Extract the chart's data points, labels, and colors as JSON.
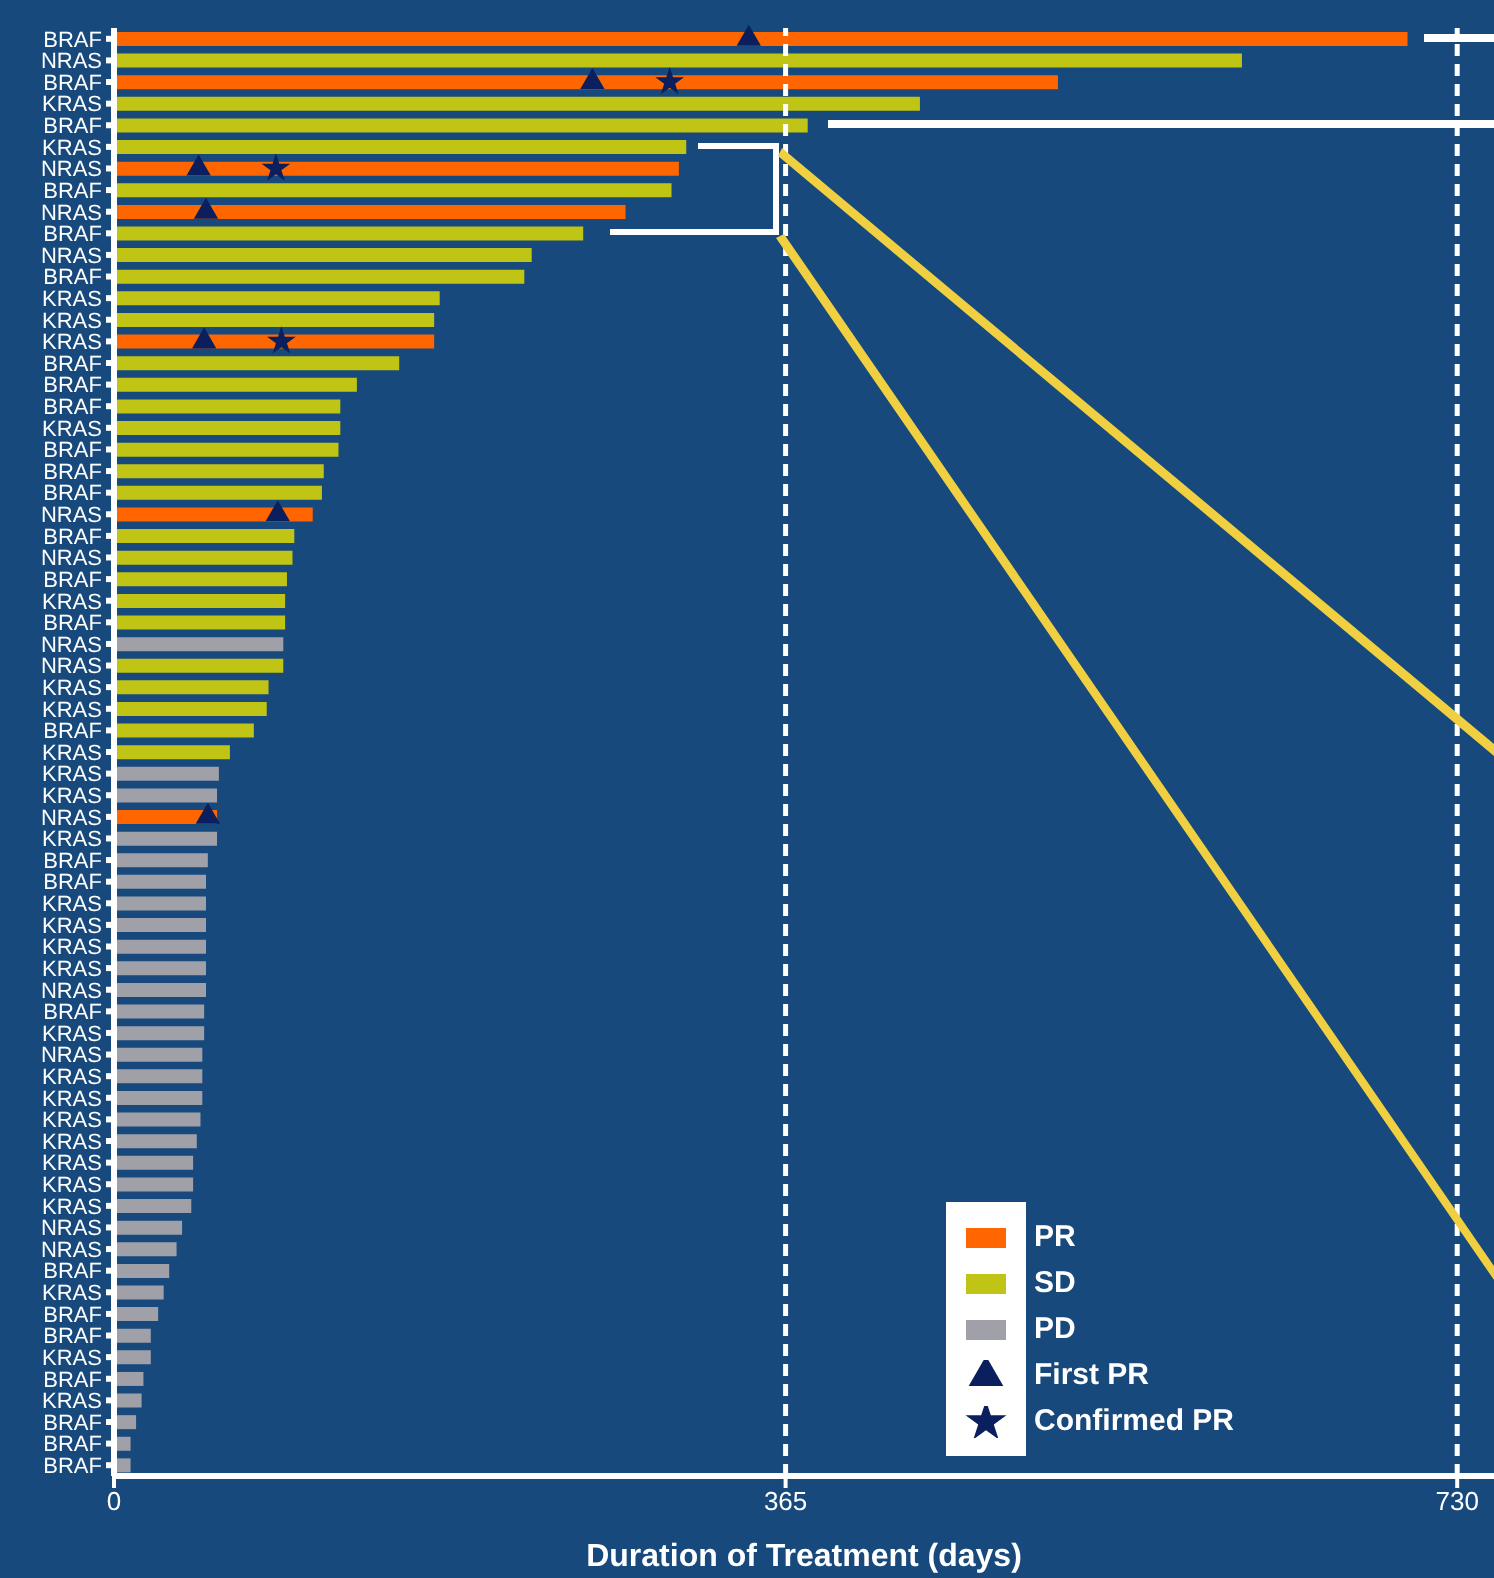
{
  "chart_data": {
    "type": "bar",
    "orientation": "horizontal",
    "stacked": true,
    "xlabel": "Duration of Treatment (days)",
    "categories": [
      "BRAF",
      "NRAS",
      "BRAF",
      "KRAS",
      "BRAF",
      "KRAS",
      "NRAS",
      "BRAF",
      "NRAS",
      "BRAF",
      "NRAS",
      "BRAF",
      "KRAS",
      "KRAS",
      "KRAS",
      "BRAF",
      "BRAF",
      "BRAF",
      "KRAS",
      "BRAF",
      "BRAF",
      "BRAF",
      "NRAS",
      "BRAF",
      "NRAS",
      "BRAF",
      "KRAS",
      "BRAF",
      "NRAS",
      "NRAS",
      "KRAS",
      "KRAS",
      "BRAF",
      "KRAS",
      "KRAS",
      "KRAS",
      "NRAS",
      "KRAS",
      "BRAF",
      "BRAF",
      "KRAS",
      "KRAS",
      "KRAS",
      "KRAS",
      "NRAS",
      "BRAF",
      "KRAS",
      "NRAS",
      "KRAS",
      "KRAS",
      "KRAS",
      "KRAS",
      "KRAS",
      "KRAS",
      "KRAS",
      "NRAS",
      "NRAS",
      "BRAF",
      "KRAS",
      "BRAF",
      "BRAF",
      "KRAS",
      "BRAF",
      "KRAS",
      "BRAF",
      "BRAF",
      "BRAF"
    ],
    "series": [
      {
        "name": "PR",
        "color": "#ff6600",
        "values": [
          703,
          null,
          513,
          null,
          null,
          null,
          307,
          null,
          278,
          null,
          null,
          null,
          null,
          null,
          174,
          null,
          null,
          null,
          null,
          null,
          null,
          null,
          108,
          null,
          null,
          null,
          null,
          null,
          null,
          null,
          null,
          null,
          null,
          null,
          null,
          null,
          56,
          null,
          null,
          null,
          null,
          null,
          null,
          null,
          null,
          null,
          null,
          null,
          null,
          null,
          null,
          null,
          null,
          null,
          null,
          null,
          null,
          null,
          null,
          null,
          null,
          null,
          null,
          null,
          null,
          null,
          null
        ]
      },
      {
        "name": "SD",
        "color": "#c0c415",
        "values": [
          null,
          613,
          null,
          438,
          377,
          311,
          null,
          303,
          null,
          255,
          227,
          223,
          177,
          174,
          null,
          155,
          132,
          123,
          123,
          122,
          114,
          113,
          null,
          98,
          97,
          94,
          93,
          93,
          null,
          92,
          84,
          83,
          76,
          63,
          null,
          null,
          null,
          null,
          null,
          null,
          null,
          null,
          null,
          null,
          null,
          null,
          null,
          null,
          null,
          null,
          null,
          null,
          null,
          null,
          null,
          null,
          null,
          null,
          null,
          null,
          null,
          null,
          null,
          null,
          null,
          null,
          null
        ]
      },
      {
        "name": "PD",
        "color": "#a0a0a8",
        "values": [
          null,
          null,
          null,
          null,
          null,
          null,
          null,
          null,
          null,
          null,
          null,
          null,
          null,
          null,
          null,
          null,
          null,
          null,
          null,
          null,
          null,
          null,
          null,
          null,
          null,
          null,
          null,
          null,
          92,
          null,
          null,
          null,
          null,
          null,
          57,
          56,
          null,
          56,
          51,
          50,
          50,
          50,
          50,
          50,
          50,
          49,
          49,
          48,
          48,
          48,
          47,
          45,
          43,
          43,
          42,
          37,
          34,
          30,
          27,
          24,
          20,
          20,
          16,
          15,
          12,
          9,
          9
        ]
      },
      {
        "name": "First PR",
        "type": "scatter",
        "marker": "triangle",
        "color": "#0b1f5e",
        "values": [
          345,
          null,
          260,
          null,
          null,
          null,
          46,
          null,
          50,
          null,
          null,
          null,
          null,
          null,
          49,
          null,
          null,
          null,
          null,
          null,
          null,
          null,
          89,
          null,
          null,
          null,
          null,
          null,
          null,
          null,
          null,
          null,
          null,
          null,
          null,
          null,
          51,
          null,
          null,
          null,
          null,
          null,
          null,
          null,
          null,
          null,
          null,
          null,
          null,
          null,
          null,
          null,
          null,
          null,
          null,
          null,
          null,
          null,
          null,
          null,
          null,
          null,
          null,
          null,
          null,
          null,
          null
        ]
      },
      {
        "name": "Confirmed PR",
        "type": "scatter",
        "marker": "star",
        "color": "#0b1f5e",
        "values": [
          null,
          null,
          302,
          null,
          null,
          null,
          88,
          null,
          null,
          null,
          null,
          null,
          null,
          null,
          91,
          null,
          null,
          null,
          null,
          null,
          null,
          null,
          null,
          null,
          null,
          null,
          null,
          null,
          null,
          null,
          null,
          null,
          null,
          null,
          null,
          null,
          null,
          null,
          null,
          null,
          null,
          null,
          null,
          null,
          null,
          null,
          null,
          null,
          null,
          null,
          null,
          null,
          null,
          null,
          null,
          null,
          null,
          null,
          null,
          null,
          null,
          null,
          null,
          null,
          null,
          null,
          null
        ]
      }
    ],
    "xlim": [
      0,
      750
    ],
    "xticks": [
      0,
      365,
      730
    ],
    "ref_lines": [
      {
        "axis": "x",
        "value": 365,
        "color": "#ffffff",
        "line_style": "dashed"
      },
      {
        "axis": "x",
        "value": 730,
        "color": "#ffffff",
        "line_style": "dashed"
      }
    ],
    "legend": "bottom right"
  }
}
